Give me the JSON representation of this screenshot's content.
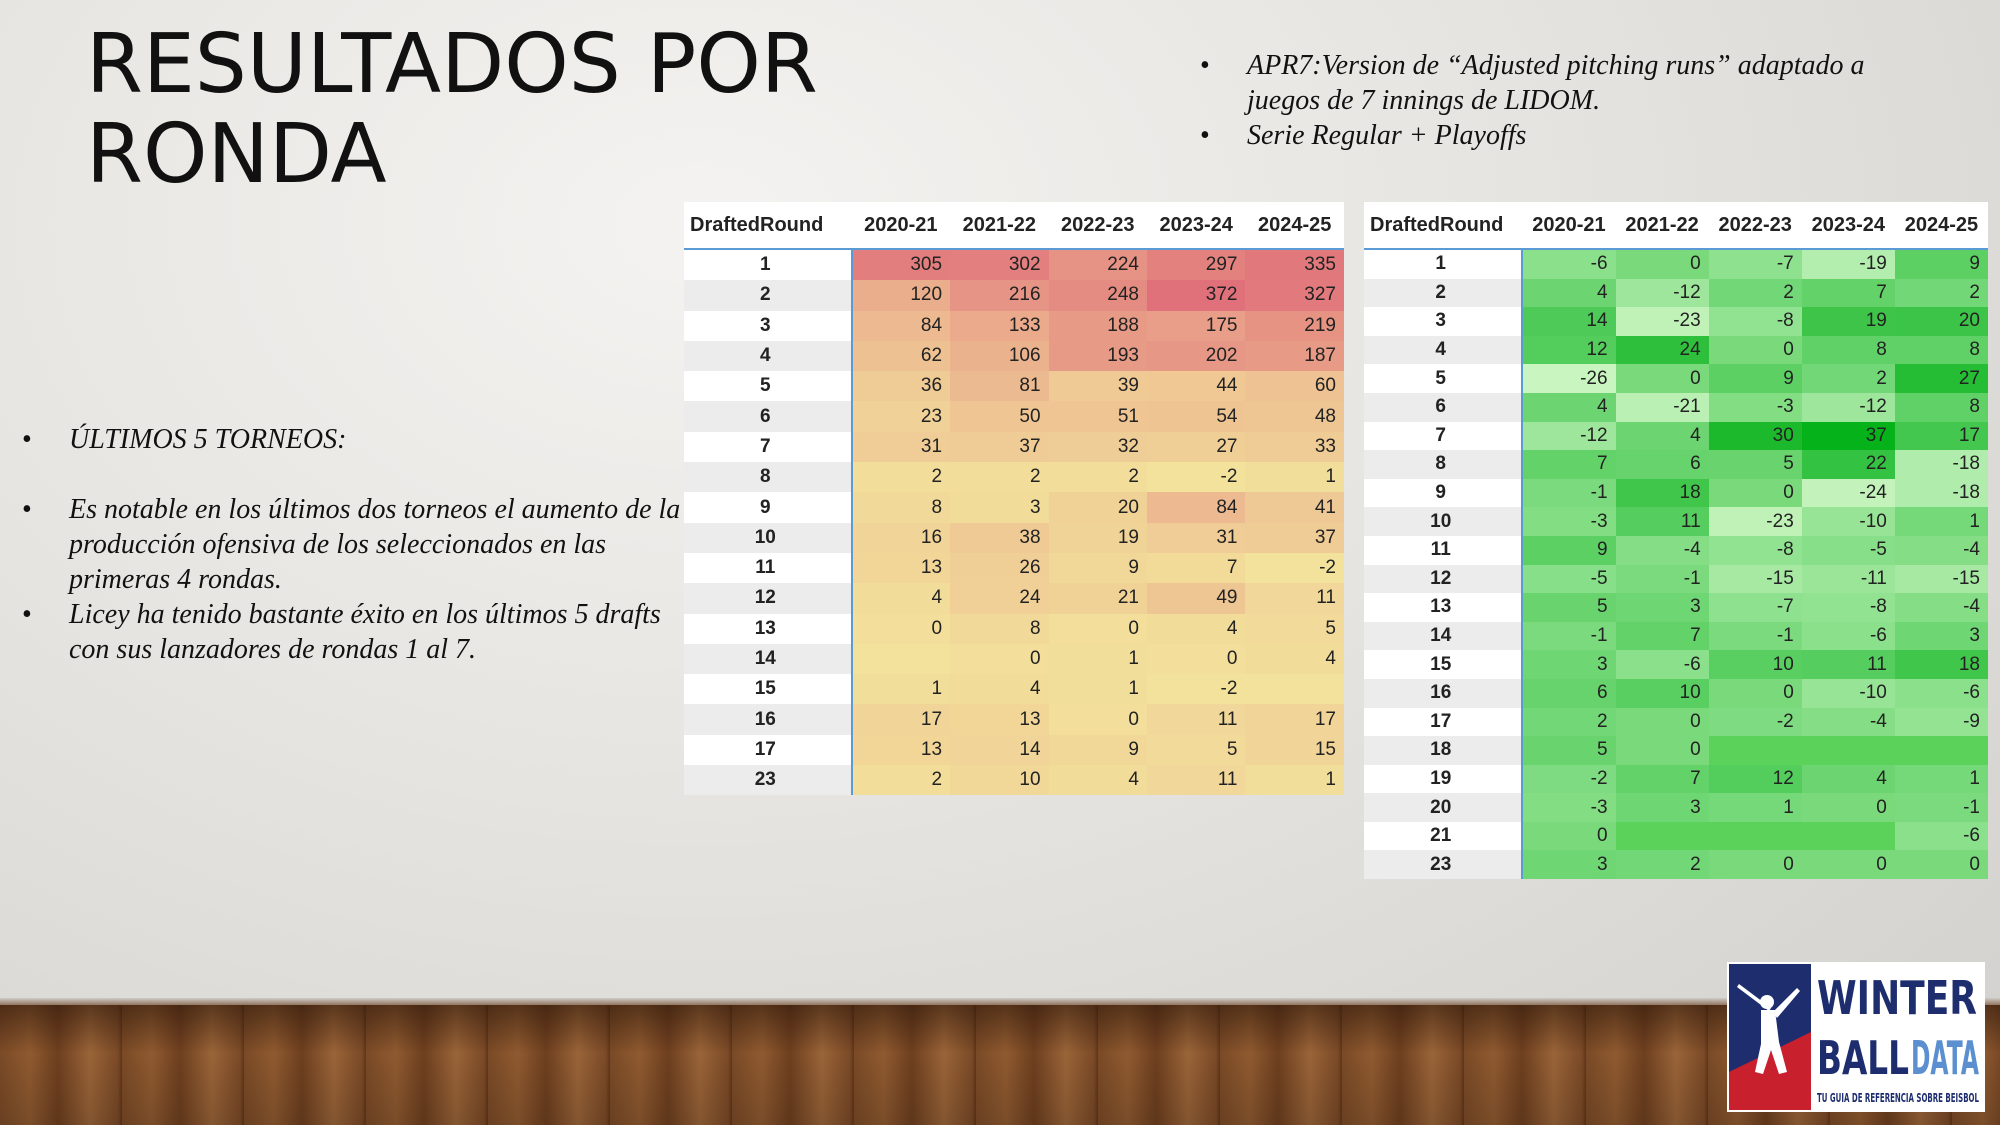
{
  "title": "RESULTADOS POR RONDA",
  "notes_top": [
    "APR7:Version de “Adjusted pitching runs” adaptado a juegos de 7 innings de LIDOM.",
    "Serie Regular + Playoffs"
  ],
  "notes_left": [
    "ÚLTIMOS 5 TORNEOS:",
    "Es notable en los últimos dos torneos el aumento de la producción ofensiva de los seleccionados en las primeras 4 rondas.",
    "Licey ha tenido bastante éxito en los últimos 5 drafts con sus lanzadores de rondas 1 al 7."
  ],
  "table1": {
    "headers": [
      "DraftedRound",
      "2020-21",
      "2021-22",
      "2022-23",
      "2023-24",
      "2024-25"
    ],
    "rows": [
      [
        "1",
        "305",
        "302",
        "224",
        "297",
        "335"
      ],
      [
        "2",
        "120",
        "216",
        "248",
        "372",
        "327"
      ],
      [
        "3",
        "84",
        "133",
        "188",
        "175",
        "219"
      ],
      [
        "4",
        "62",
        "106",
        "193",
        "202",
        "187"
      ],
      [
        "5",
        "36",
        "81",
        "39",
        "44",
        "60"
      ],
      [
        "6",
        "23",
        "50",
        "51",
        "54",
        "48"
      ],
      [
        "7",
        "31",
        "37",
        "32",
        "27",
        "33"
      ],
      [
        "8",
        "2",
        "2",
        "2",
        "-2",
        "1"
      ],
      [
        "9",
        "8",
        "3",
        "20",
        "84",
        "41"
      ],
      [
        "10",
        "16",
        "38",
        "19",
        "31",
        "37"
      ],
      [
        "11",
        "13",
        "26",
        "9",
        "7",
        "-2"
      ],
      [
        "12",
        "4",
        "24",
        "21",
        "49",
        "11"
      ],
      [
        "13",
        "0",
        "8",
        "0",
        "4",
        "5"
      ],
      [
        "14",
        "",
        "0",
        "1",
        "0",
        "4"
      ],
      [
        "15",
        "1",
        "4",
        "1",
        "-2",
        ""
      ],
      [
        "16",
        "17",
        "13",
        "0",
        "11",
        "17"
      ],
      [
        "17",
        "13",
        "14",
        "9",
        "5",
        "15"
      ],
      [
        "23",
        "2",
        "10",
        "4",
        "11",
        "1"
      ]
    ]
  },
  "table2": {
    "headers": [
      "DraftedRound",
      "2020-21",
      "2021-22",
      "2022-23",
      "2023-24",
      "2024-25"
    ],
    "rows": [
      [
        "1",
        "-6",
        "0",
        "-7",
        "-19",
        "9"
      ],
      [
        "2",
        "4",
        "-12",
        "2",
        "7",
        "2"
      ],
      [
        "3",
        "14",
        "-23",
        "-8",
        "19",
        "20"
      ],
      [
        "4",
        "12",
        "24",
        "0",
        "8",
        "8"
      ],
      [
        "5",
        "-26",
        "0",
        "9",
        "2",
        "27"
      ],
      [
        "6",
        "4",
        "-21",
        "-3",
        "-12",
        "8"
      ],
      [
        "7",
        "-12",
        "4",
        "30",
        "37",
        "17"
      ],
      [
        "8",
        "7",
        "6",
        "5",
        "22",
        "-18"
      ],
      [
        "9",
        "-1",
        "18",
        "0",
        "-24",
        "-18"
      ],
      [
        "10",
        "-3",
        "11",
        "-23",
        "-10",
        "1"
      ],
      [
        "11",
        "9",
        "-4",
        "-8",
        "-5",
        "-4"
      ],
      [
        "12",
        "-5",
        "-1",
        "-15",
        "-11",
        "-15"
      ],
      [
        "13",
        "5",
        "3",
        "-7",
        "-8",
        "-4"
      ],
      [
        "14",
        "-1",
        "7",
        "-1",
        "-6",
        "3"
      ],
      [
        "15",
        "3",
        "-6",
        "10",
        "11",
        "18"
      ],
      [
        "16",
        "6",
        "10",
        "0",
        "-10",
        "-6"
      ],
      [
        "17",
        "2",
        "0",
        "-2",
        "-4",
        "-9"
      ],
      [
        "18",
        "5",
        "0",
        "",
        "",
        ""
      ],
      [
        "19",
        "-2",
        "7",
        "12",
        "4",
        "1"
      ],
      [
        "20",
        "-3",
        "3",
        "1",
        "0",
        "-1"
      ],
      [
        "21",
        "0",
        "",
        "",
        "",
        "-6"
      ],
      [
        "23",
        "3",
        "2",
        "0",
        "0",
        "0"
      ]
    ]
  },
  "logo": {
    "word1": "WINTER",
    "word2a": "BALL",
    "word2b": "DATA",
    "tagline": "TU GUIA DE REFERENCIA SOBRE BEISBOL"
  },
  "colors": {
    "heat_low": "#f3e29c",
    "heat_high": "#e0707a",
    "green_low": "#c9f5c0",
    "green_high": "#06b21a",
    "accent_blue": "#5b9bd5",
    "logo_red": "#c8202c",
    "logo_navy": "#1e2d6e"
  }
}
